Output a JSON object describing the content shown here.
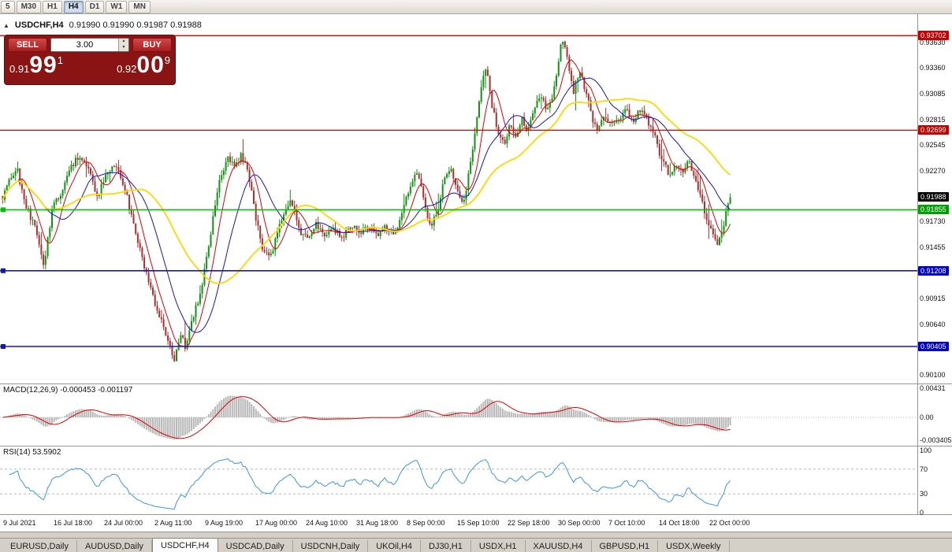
{
  "toolbar": {
    "periods": [
      {
        "label": "5",
        "active": false
      },
      {
        "label": "M30",
        "active": false
      },
      {
        "label": "H1",
        "active": false
      },
      {
        "label": "H4",
        "active": true
      },
      {
        "label": "D1",
        "active": false
      },
      {
        "label": "W1",
        "active": false
      },
      {
        "label": "MN",
        "active": false
      }
    ]
  },
  "chart_header": {
    "collapse_icon": "▲",
    "symbol": "USDCHF,H4",
    "ohlc": "0.91990 0.91990 0.91987 0.91988"
  },
  "trade_panel": {
    "sell_label": "SELL",
    "buy_label": "BUY",
    "volume": "3.00",
    "bid_prefix": "0.91",
    "bid_big": "99",
    "bid_sup": "1",
    "ask_prefix": "0.92",
    "ask_big": "00",
    "ask_sup": "9"
  },
  "macd_panel": {
    "label": "MACD(12,26,9) -0.000453 -0.001197",
    "axis": [
      {
        "text": "0.00431",
        "value": 0.00431
      },
      {
        "text": "0.00",
        "value": 0
      },
      {
        "text": "-0.003405",
        "value": -0.003405
      }
    ]
  },
  "rsi_panel": {
    "label": "RSI(14) 53.5902",
    "axis": [
      {
        "text": "100",
        "value": 100
      },
      {
        "text": "70",
        "value": 70
      },
      {
        "text": "30",
        "value": 30
      },
      {
        "text": "0",
        "value": 0
      }
    ],
    "levels": [
      70,
      30
    ]
  },
  "tabs": [
    {
      "label": "EURUSD,Daily",
      "active": false
    },
    {
      "label": "AUDUSD,Daily",
      "active": false
    },
    {
      "label": "USDCHF,H4",
      "active": true
    },
    {
      "label": "USDCAD,Daily",
      "active": false
    },
    {
      "label": "USDCNH,Daily",
      "active": false
    },
    {
      "label": "UKOil,H4",
      "active": false
    },
    {
      "label": "DJ30,H1",
      "active": false
    },
    {
      "label": "USDX,H1",
      "active": false
    },
    {
      "label": "XAUUSD,H4",
      "active": false
    },
    {
      "label": "GBPUSD,H1",
      "active": false
    },
    {
      "label": "USDX,Weekly",
      "active": false
    }
  ],
  "chart_data": {
    "type": "candlestick",
    "symbol": "USDCHF",
    "timeframe": "H4",
    "current_price": 0.91988,
    "ohlc_current": {
      "open": 0.9199,
      "high": 0.9199,
      "low": 0.91987,
      "close": 0.91988
    },
    "ylim": [
      0.90012,
      0.93922
    ],
    "up_color": "#0f9610",
    "down_color": "#ad2f2f",
    "candle_count": 340,
    "price_anchors": [
      [
        0.0,
        0.92
      ],
      [
        0.008,
        0.9218
      ],
      [
        0.02,
        0.9228
      ],
      [
        0.032,
        0.919
      ],
      [
        0.045,
        0.9165
      ],
      [
        0.057,
        0.9128
      ],
      [
        0.068,
        0.9185
      ],
      [
        0.08,
        0.9205
      ],
      [
        0.092,
        0.9228
      ],
      [
        0.105,
        0.9242
      ],
      [
        0.118,
        0.9226
      ],
      [
        0.13,
        0.92
      ],
      [
        0.143,
        0.9222
      ],
      [
        0.156,
        0.9232
      ],
      [
        0.168,
        0.921
      ],
      [
        0.18,
        0.917
      ],
      [
        0.193,
        0.913
      ],
      [
        0.206,
        0.9095
      ],
      [
        0.218,
        0.9068
      ],
      [
        0.228,
        0.9045
      ],
      [
        0.236,
        0.9022
      ],
      [
        0.244,
        0.9052
      ],
      [
        0.252,
        0.904
      ],
      [
        0.26,
        0.9068
      ],
      [
        0.27,
        0.9092
      ],
      [
        0.28,
        0.9132
      ],
      [
        0.29,
        0.9182
      ],
      [
        0.3,
        0.9222
      ],
      [
        0.31,
        0.924
      ],
      [
        0.318,
        0.923
      ],
      [
        0.328,
        0.9244
      ],
      [
        0.338,
        0.9224
      ],
      [
        0.348,
        0.9178
      ],
      [
        0.358,
        0.914
      ],
      [
        0.368,
        0.9133
      ],
      [
        0.378,
        0.9166
      ],
      [
        0.388,
        0.9186
      ],
      [
        0.398,
        0.9194
      ],
      [
        0.408,
        0.9164
      ],
      [
        0.418,
        0.9155
      ],
      [
        0.43,
        0.9172
      ],
      [
        0.442,
        0.9158
      ],
      [
        0.454,
        0.9168
      ],
      [
        0.466,
        0.9155
      ],
      [
        0.478,
        0.917
      ],
      [
        0.49,
        0.9159
      ],
      [
        0.502,
        0.9166
      ],
      [
        0.514,
        0.9157
      ],
      [
        0.526,
        0.9168
      ],
      [
        0.538,
        0.9155
      ],
      [
        0.55,
        0.9188
      ],
      [
        0.562,
        0.9216
      ],
      [
        0.571,
        0.9222
      ],
      [
        0.58,
        0.919
      ],
      [
        0.588,
        0.9165
      ],
      [
        0.597,
        0.9182
      ],
      [
        0.606,
        0.9215
      ],
      [
        0.615,
        0.9231
      ],
      [
        0.625,
        0.9205
      ],
      [
        0.633,
        0.919
      ],
      [
        0.641,
        0.9226
      ],
      [
        0.65,
        0.9272
      ],
      [
        0.658,
        0.9318
      ],
      [
        0.665,
        0.9335
      ],
      [
        0.673,
        0.9295
      ],
      [
        0.681,
        0.9269
      ],
      [
        0.689,
        0.9255
      ],
      [
        0.697,
        0.9276
      ],
      [
        0.705,
        0.9261
      ],
      [
        0.713,
        0.9282
      ],
      [
        0.721,
        0.927
      ],
      [
        0.729,
        0.9292
      ],
      [
        0.739,
        0.9306
      ],
      [
        0.749,
        0.9291
      ],
      [
        0.759,
        0.9317
      ],
      [
        0.769,
        0.9368
      ],
      [
        0.777,
        0.9341
      ],
      [
        0.785,
        0.9311
      ],
      [
        0.793,
        0.9336
      ],
      [
        0.801,
        0.9312
      ],
      [
        0.809,
        0.9286
      ],
      [
        0.817,
        0.9271
      ],
      [
        0.827,
        0.9286
      ],
      [
        0.837,
        0.9276
      ],
      [
        0.847,
        0.9281
      ],
      [
        0.857,
        0.9291
      ],
      [
        0.867,
        0.9281
      ],
      [
        0.877,
        0.9291
      ],
      [
        0.887,
        0.9278
      ],
      [
        0.897,
        0.9261
      ],
      [
        0.907,
        0.9236
      ],
      [
        0.917,
        0.9221
      ],
      [
        0.926,
        0.9236
      ],
      [
        0.934,
        0.9226
      ],
      [
        0.942,
        0.9241
      ],
      [
        0.95,
        0.9221
      ],
      [
        0.958,
        0.9201
      ],
      [
        0.966,
        0.9181
      ],
      [
        0.974,
        0.9165
      ],
      [
        0.982,
        0.9148
      ],
      [
        0.991,
        0.9172
      ],
      [
        1.0,
        0.91988
      ]
    ],
    "moving_averages": [
      {
        "period": 8,
        "color": "#e60000",
        "width": 1
      },
      {
        "period": 20,
        "color": "#1515c8",
        "width": 1
      },
      {
        "period": 45,
        "color": "#ffd800",
        "width": 1.8
      }
    ],
    "hlines": [
      {
        "price": 0.93702,
        "color": "#dd0000",
        "width": 1.4,
        "handles": false
      },
      {
        "price": 0.92699,
        "color": "#dd0000",
        "width": 1.2,
        "handles": false
      },
      {
        "price": 0.91855,
        "color": "#00c300",
        "width": 1.6,
        "handles": true
      },
      {
        "price": 0.91208,
        "color": "#1414c8",
        "width": 1.6,
        "handles": true
      },
      {
        "price": 0.90405,
        "color": "#1414c8",
        "width": 1.6,
        "handles": true
      }
    ],
    "axis_labels": [
      {
        "text": "0.93630",
        "price": 0.9363
      },
      {
        "text": "0.93360",
        "price": 0.9336
      },
      {
        "text": "0.93085",
        "price": 0.93085
      },
      {
        "text": "0.92815",
        "price": 0.92815
      },
      {
        "text": "0.92545",
        "price": 0.92545
      },
      {
        "text": "0.92270",
        "price": 0.9227
      },
      {
        "text": "0.91730",
        "price": 0.9173
      },
      {
        "text": "0.91455",
        "price": 0.91455
      },
      {
        "text": "0.90915",
        "price": 0.90915
      },
      {
        "text": "0.90640",
        "price": 0.9064
      },
      {
        "text": "0.90100",
        "price": 0.901
      }
    ],
    "badges": [
      {
        "text": "0.93702",
        "price": 0.93702,
        "bg": "#c80000"
      },
      {
        "text": "0.92699",
        "price": 0.92699,
        "bg": "#c80000"
      },
      {
        "text": "0.91988",
        "price": 0.91988,
        "bg": "#000000"
      },
      {
        "text": "0.91855",
        "price": 0.91855,
        "bg": "#00a000"
      },
      {
        "text": "0.91208",
        "price": 0.91208,
        "bg": "#0000c8"
      },
      {
        "text": "0.90405",
        "price": 0.90405,
        "bg": "#0000c8"
      }
    ],
    "macd": {
      "fast": 12,
      "slow": 26,
      "signal": 9,
      "histogram_color": "#b8b8b8",
      "signal_color": "#e00000"
    },
    "rsi": {
      "period": 14,
      "color": "#3a97e8",
      "level_color": "#b8b8b8"
    },
    "time_labels": [
      "9 Jul 2021",
      "16 Jul 18:00",
      "24 Jul 00:00",
      "2 Aug 11:00",
      "9 Aug 19:00",
      "17 Aug 00:00",
      "24 Aug 10:00",
      "31 Aug 18:00",
      "8 Sep 00:00",
      "15 Sep 10:00",
      "22 Sep 18:00",
      "30 Sep 00:00",
      "7 Oct 10:00",
      "14 Oct 18:00",
      "22 Oct 00:00"
    ]
  }
}
